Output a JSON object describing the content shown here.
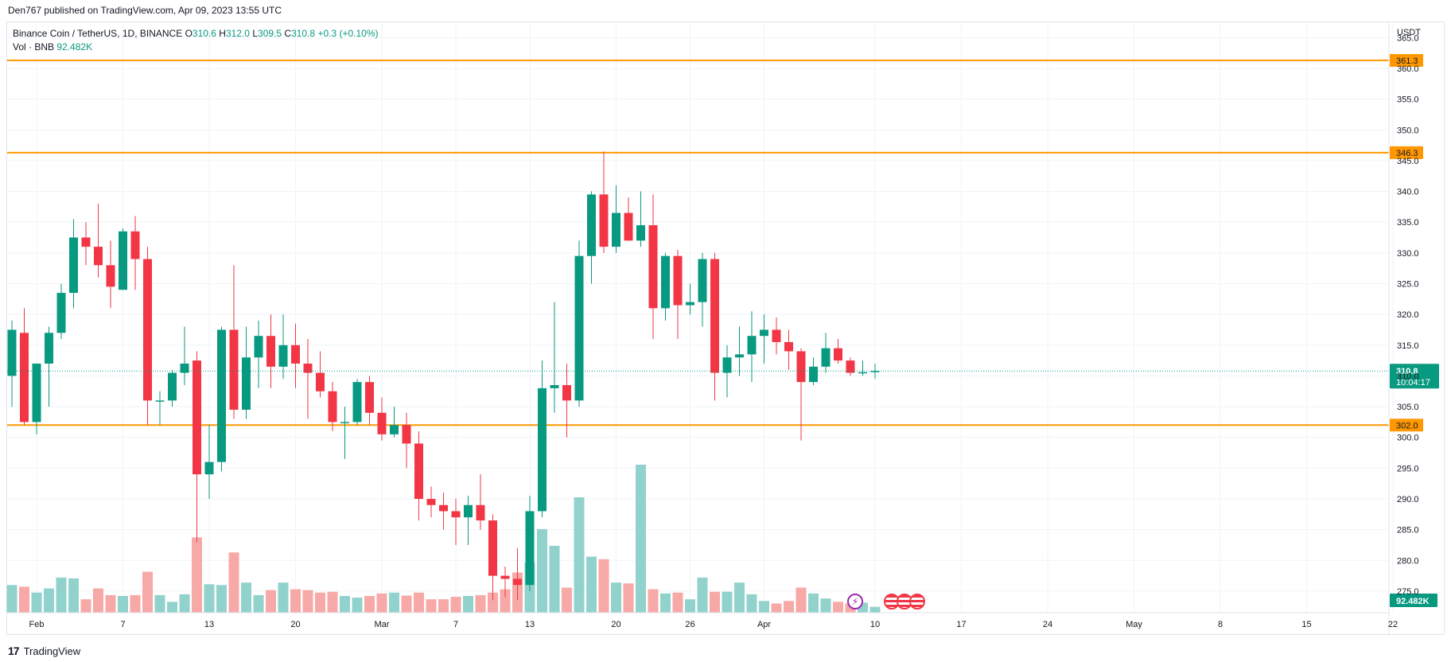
{
  "header": {
    "published": "Den767 published on TradingView.com, Apr 09, 2023 13:55 UTC"
  },
  "legend": {
    "symbol": "Binance Coin / TetherUS, 1D, BINANCE",
    "o_label": "O",
    "o": "310.6",
    "h_label": "H",
    "h": "312.0",
    "l_label": "L",
    "l": "309.5",
    "c_label": "C",
    "c": "310.8",
    "change": "+0.3 (+0.10%)",
    "vol_label": "Vol · BNB",
    "vol": "92.482K"
  },
  "footer": {
    "brand": "TradingView"
  },
  "chart_data": {
    "type": "candlestick",
    "price_unit": "USDT",
    "y_ticks": [
      "365.0",
      "360.0",
      "355.0",
      "350.0",
      "345.0",
      "340.0",
      "335.0",
      "330.0",
      "325.0",
      "320.0",
      "315.0",
      "310.0",
      "305.0",
      "300.0",
      "295.0",
      "290.0",
      "285.0",
      "280.0",
      "275.0"
    ],
    "ylim": [
      271.5,
      367.5
    ],
    "x_tick_labels": [
      {
        "day": 2,
        "label": "Feb"
      },
      {
        "day": 9,
        "label": "7"
      },
      {
        "day": 16,
        "label": "13"
      },
      {
        "day": 23,
        "label": "20"
      },
      {
        "day": 30,
        "label": "Mar"
      },
      {
        "day": 36,
        "label": "7"
      },
      {
        "day": 42,
        "label": "13"
      },
      {
        "day": 49,
        "label": "20"
      },
      {
        "day": 55,
        "label": "26"
      },
      {
        "day": 61,
        "label": "Apr"
      },
      {
        "day": 70,
        "label": "10"
      },
      {
        "day": 77,
        "label": "17"
      },
      {
        "day": 84,
        "label": "24"
      },
      {
        "day": 91,
        "label": "May"
      },
      {
        "day": 98,
        "label": "8"
      },
      {
        "day": 105,
        "label": "15"
      },
      {
        "day": 112,
        "label": "22"
      }
    ],
    "levels": [
      {
        "value": 361.3,
        "label": "361.3",
        "color": "#ff9800"
      },
      {
        "value": 346.3,
        "label": "346.3",
        "color": "#ff9800"
      },
      {
        "value": 302.0,
        "label": "302.0",
        "color": "#ff9800"
      }
    ],
    "last_price": {
      "value": 310.8,
      "label": "310.8",
      "countdown": "10:04:17",
      "color": "#089981"
    },
    "volume_label": "92.482K",
    "colors": {
      "up": "#089981",
      "down": "#f23645",
      "vol_up": "#92d2cc",
      "vol_down": "#f7a9a7"
    },
    "candles": [
      {
        "o": 310.0,
        "h": 319.0,
        "l": 305.0,
        "c": 317.5
      },
      {
        "o": 317.0,
        "h": 321.0,
        "l": 302.0,
        "c": 302.5
      },
      {
        "o": 302.5,
        "h": 312.0,
        "l": 300.5,
        "c": 312.0
      },
      {
        "o": 312.0,
        "h": 318.0,
        "l": 305.0,
        "c": 317.0
      },
      {
        "o": 317.0,
        "h": 325.0,
        "l": 316.0,
        "c": 323.5
      },
      {
        "o": 323.5,
        "h": 335.5,
        "l": 321.0,
        "c": 332.5
      },
      {
        "o": 332.5,
        "h": 335.0,
        "l": 328.0,
        "c": 331.0
      },
      {
        "o": 331.0,
        "h": 338.0,
        "l": 326.0,
        "c": 328.0
      },
      {
        "o": 328.0,
        "h": 332.0,
        "l": 321.0,
        "c": 324.5
      },
      {
        "o": 324.0,
        "h": 334.0,
        "l": 324.0,
        "c": 333.5
      },
      {
        "o": 333.5,
        "h": 336.0,
        "l": 324.0,
        "c": 329.0
      },
      {
        "o": 329.0,
        "h": 331.0,
        "l": 302.0,
        "c": 306.0
      },
      {
        "o": 306.0,
        "h": 307.5,
        "l": 302.0,
        "c": 306.0
      },
      {
        "o": 306.0,
        "h": 311.0,
        "l": 305.0,
        "c": 310.5
      },
      {
        "o": 310.5,
        "h": 318.0,
        "l": 308.5,
        "c": 312.0
      },
      {
        "o": 312.5,
        "h": 314.0,
        "l": 283.0,
        "c": 294.0
      },
      {
        "o": 294.0,
        "h": 302.0,
        "l": 290.0,
        "c": 296.0
      },
      {
        "o": 296.0,
        "h": 318.0,
        "l": 294.5,
        "c": 317.5
      },
      {
        "o": 317.5,
        "h": 328.0,
        "l": 303.0,
        "c": 304.5
      },
      {
        "o": 304.5,
        "h": 318.0,
        "l": 303.0,
        "c": 313.0
      },
      {
        "o": 313.0,
        "h": 319.0,
        "l": 308.0,
        "c": 316.5
      },
      {
        "o": 316.5,
        "h": 320.0,
        "l": 308.0,
        "c": 311.5
      },
      {
        "o": 311.5,
        "h": 320.0,
        "l": 309.5,
        "c": 315.0
      },
      {
        "o": 315.0,
        "h": 318.5,
        "l": 308.0,
        "c": 312.0
      },
      {
        "o": 312.0,
        "h": 316.0,
        "l": 303.0,
        "c": 310.5
      },
      {
        "o": 310.5,
        "h": 314.0,
        "l": 306.5,
        "c": 307.5
      },
      {
        "o": 307.5,
        "h": 309.0,
        "l": 301.0,
        "c": 302.5
      },
      {
        "o": 302.5,
        "h": 305.0,
        "l": 296.5,
        "c": 302.5
      },
      {
        "o": 302.5,
        "h": 309.5,
        "l": 302.0,
        "c": 309.0
      },
      {
        "o": 309.0,
        "h": 310.0,
        "l": 302.0,
        "c": 304.0
      },
      {
        "o": 304.0,
        "h": 306.5,
        "l": 299.5,
        "c": 300.5
      },
      {
        "o": 300.5,
        "h": 305.0,
        "l": 300.0,
        "c": 302.0
      },
      {
        "o": 302.0,
        "h": 304.0,
        "l": 295.0,
        "c": 299.0
      },
      {
        "o": 299.0,
        "h": 301.0,
        "l": 286.5,
        "c": 290.0
      },
      {
        "o": 290.0,
        "h": 292.0,
        "l": 287.0,
        "c": 289.0
      },
      {
        "o": 289.0,
        "h": 291.0,
        "l": 285.0,
        "c": 288.0
      },
      {
        "o": 288.0,
        "h": 290.0,
        "l": 282.5,
        "c": 287.0
      },
      {
        "o": 287.0,
        "h": 290.5,
        "l": 282.5,
        "c": 289.0
      },
      {
        "o": 289.0,
        "h": 294.0,
        "l": 285.0,
        "c": 286.5
      },
      {
        "o": 286.5,
        "h": 287.5,
        "l": 273.5,
        "c": 277.5
      },
      {
        "o": 277.5,
        "h": 279.0,
        "l": 274.0,
        "c": 277.0
      },
      {
        "o": 277.0,
        "h": 282.0,
        "l": 273.5,
        "c": 276.0
      },
      {
        "o": 276.0,
        "h": 290.5,
        "l": 275.0,
        "c": 288.0
      },
      {
        "o": 288.0,
        "h": 312.5,
        "l": 287.0,
        "c": 308.0
      },
      {
        "o": 308.0,
        "h": 322.0,
        "l": 304.0,
        "c": 308.5
      },
      {
        "o": 308.5,
        "h": 312.0,
        "l": 300.0,
        "c": 306.0
      },
      {
        "o": 306.0,
        "h": 332.0,
        "l": 305.0,
        "c": 329.5
      },
      {
        "o": 329.5,
        "h": 340.0,
        "l": 325.0,
        "c": 339.5
      },
      {
        "o": 339.5,
        "h": 346.5,
        "l": 330.0,
        "c": 331.0
      },
      {
        "o": 331.0,
        "h": 341.0,
        "l": 330.0,
        "c": 336.5
      },
      {
        "o": 336.5,
        "h": 339.0,
        "l": 332.0,
        "c": 332.0
      },
      {
        "o": 332.0,
        "h": 340.0,
        "l": 331.0,
        "c": 334.5
      },
      {
        "o": 334.5,
        "h": 339.5,
        "l": 316.0,
        "c": 321.0
      },
      {
        "o": 321.0,
        "h": 330.0,
        "l": 319.0,
        "c": 329.5
      },
      {
        "o": 329.5,
        "h": 330.5,
        "l": 316.0,
        "c": 321.5
      },
      {
        "o": 321.5,
        "h": 325.0,
        "l": 320.0,
        "c": 322.0
      },
      {
        "o": 322.0,
        "h": 330.0,
        "l": 318.0,
        "c": 329.0
      },
      {
        "o": 329.0,
        "h": 330.0,
        "l": 306.0,
        "c": 310.5
      },
      {
        "o": 310.5,
        "h": 315.0,
        "l": 306.5,
        "c": 313.0
      },
      {
        "o": 313.0,
        "h": 318.0,
        "l": 310.0,
        "c": 313.5
      },
      {
        "o": 313.5,
        "h": 320.5,
        "l": 309.0,
        "c": 316.5
      },
      {
        "o": 316.5,
        "h": 320.0,
        "l": 312.0,
        "c": 317.5
      },
      {
        "o": 317.5,
        "h": 319.5,
        "l": 313.5,
        "c": 315.5
      },
      {
        "o": 315.5,
        "h": 317.5,
        "l": 311.0,
        "c": 314.0
      },
      {
        "o": 314.0,
        "h": 314.5,
        "l": 299.5,
        "c": 309.0
      },
      {
        "o": 309.0,
        "h": 313.0,
        "l": 308.5,
        "c": 311.5
      },
      {
        "o": 311.5,
        "h": 317.0,
        "l": 310.5,
        "c": 314.5
      },
      {
        "o": 314.5,
        "h": 316.0,
        "l": 312.0,
        "c": 312.5
      },
      {
        "o": 312.5,
        "h": 313.0,
        "l": 310.0,
        "c": 310.5
      },
      {
        "o": 310.5,
        "h": 312.5,
        "l": 310.0,
        "c": 310.6
      },
      {
        "o": 310.6,
        "h": 312.0,
        "l": 309.5,
        "c": 310.8
      }
    ],
    "volumes": [
      330,
      310,
      240,
      290,
      420,
      410,
      160,
      290,
      210,
      200,
      210,
      490,
      210,
      130,
      220,
      900,
      340,
      330,
      720,
      360,
      210,
      270,
      360,
      280,
      270,
      240,
      250,
      200,
      180,
      200,
      230,
      240,
      205,
      240,
      160,
      160,
      190,
      200,
      210,
      240,
      280,
      480,
      600,
      1000,
      800,
      300,
      1380,
      670,
      640,
      360,
      350,
      1770,
      280,
      230,
      240,
      160,
      420,
      250,
      250,
      360,
      220,
      140,
      110,
      140,
      300,
      230,
      170,
      130,
      110,
      120,
      70
    ],
    "marks": {
      "lightning_after_day": 70,
      "flags_count": 3
    }
  }
}
